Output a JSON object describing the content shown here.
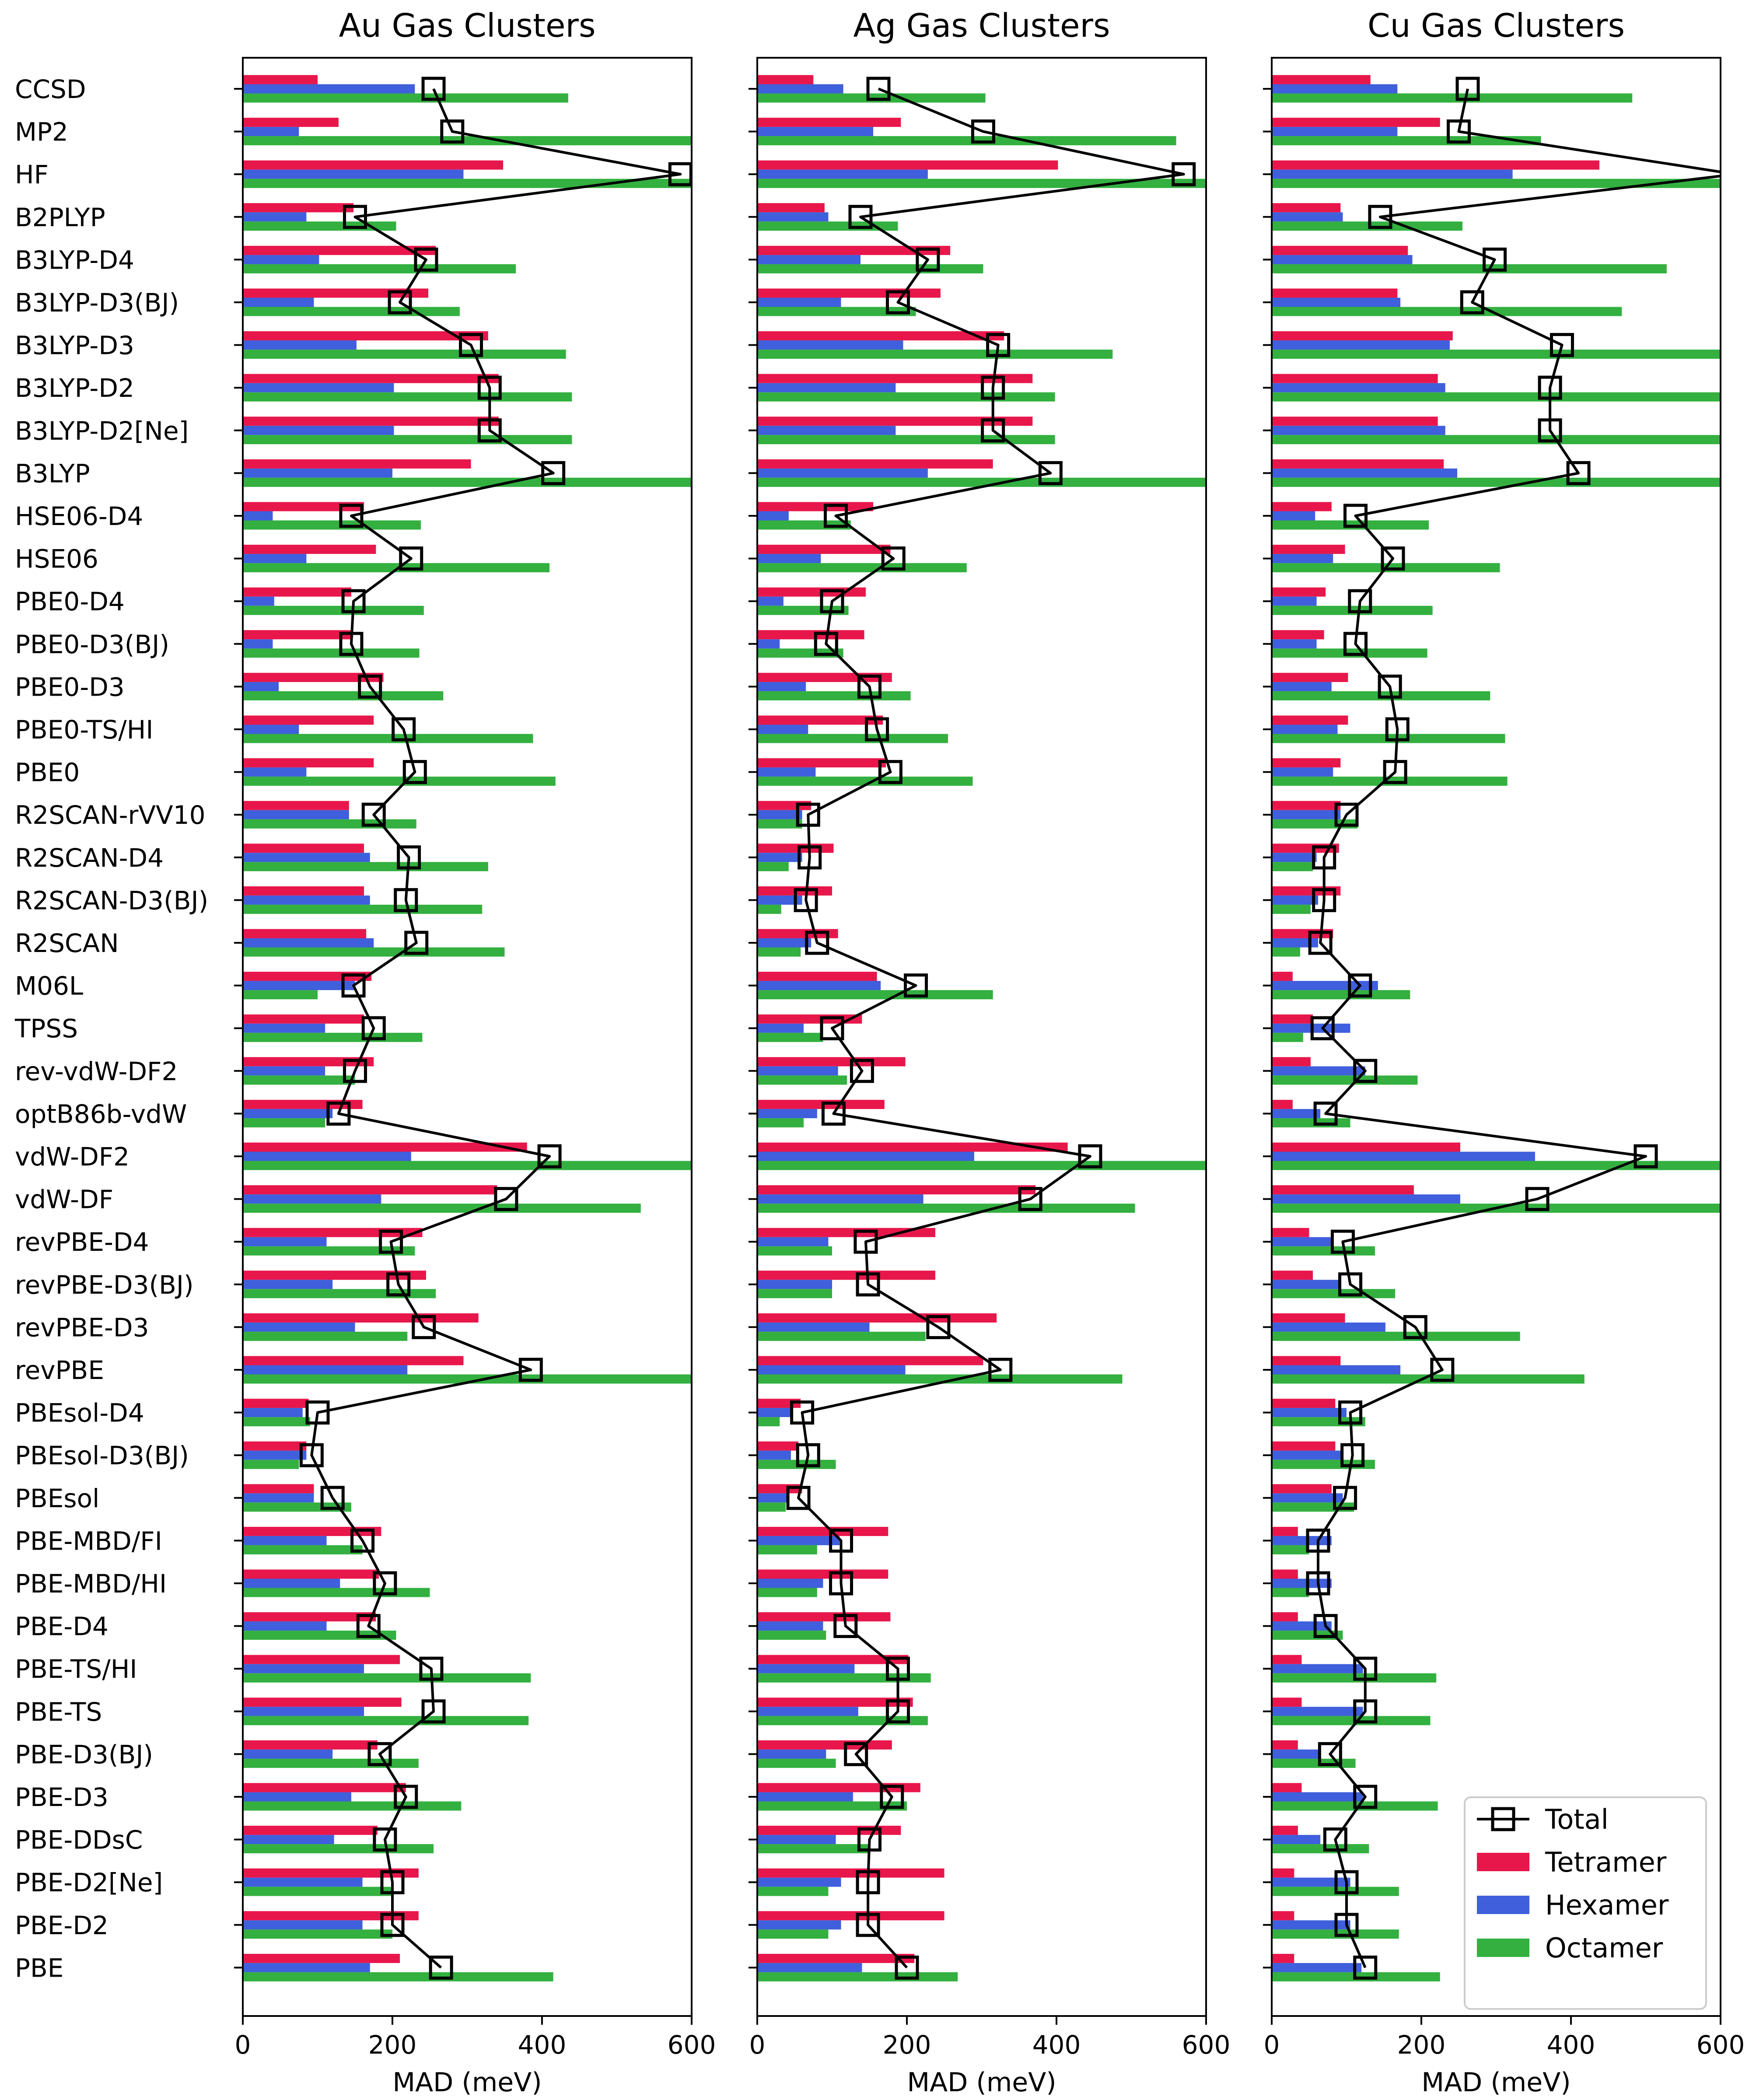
{
  "chart_data": {
    "type": "bar",
    "orientation": "horizontal",
    "xlabel": "MAD (meV)",
    "xlim": [
      0,
      600
    ],
    "xticks": [
      0,
      200,
      400,
      600
    ],
    "categories": [
      "CCSD",
      "MP2",
      "HF",
      "B2PLYP",
      "B3LYP-D4",
      "B3LYP-D3(BJ)",
      "B3LYP-D3",
      "B3LYP-D2",
      "B3LYP-D2[Ne]",
      "B3LYP",
      "HSE06-D4",
      "HSE06",
      "PBE0-D4",
      "PBE0-D3(BJ)",
      "PBE0-D3",
      "PBE0-TS/HI",
      "PBE0",
      "R2SCAN-rVV10",
      "R2SCAN-D4",
      "R2SCAN-D3(BJ)",
      "R2SCAN",
      "M06L",
      "TPSS",
      "rev-vdW-DF2",
      "optB86b-vdW",
      "vdW-DF2",
      "vdW-DF",
      "revPBE-D4",
      "revPBE-D3(BJ)",
      "revPBE-D3",
      "revPBE",
      "PBEsol-D4",
      "PBEsol-D3(BJ)",
      "PBEsol",
      "PBE-MBD/FI",
      "PBE-MBD/HI",
      "PBE-D4",
      "PBE-TS/HI",
      "PBE-TS",
      "PBE-D3(BJ)",
      "PBE-D3",
      "PBE-DDsC",
      "PBE-D2[Ne]",
      "PBE-D2",
      "PBE"
    ],
    "legend": {
      "position": "lower-right",
      "entries": [
        {
          "label": "Total",
          "color": "#000000",
          "marker": "square"
        },
        {
          "label": "Tetramer",
          "color": "#e8174b"
        },
        {
          "label": "Hexamer",
          "color": "#3f5fdc"
        },
        {
          "label": "Octamer",
          "color": "#33b040"
        }
      ]
    },
    "panels": [
      {
        "title": "Au Gas Clusters",
        "tetramer": [
          100,
          128,
          348,
          148,
          258,
          248,
          328,
          342,
          342,
          305,
          162,
          178,
          145,
          145,
          188,
          175,
          175,
          142,
          162,
          162,
          165,
          172,
          162,
          175,
          160,
          380,
          340,
          240,
          245,
          315,
          295,
          88,
          85,
          95,
          185,
          182,
          178,
          210,
          212,
          180,
          218,
          180,
          235,
          235,
          210
        ],
        "hexamer": [
          230,
          75,
          295,
          85,
          102,
          95,
          152,
          202,
          202,
          200,
          40,
          85,
          42,
          40,
          48,
          75,
          85,
          142,
          170,
          170,
          175,
          150,
          110,
          110,
          120,
          225,
          185,
          112,
          120,
          150,
          220,
          80,
          85,
          95,
          112,
          130,
          112,
          162,
          162,
          120,
          145,
          122,
          160,
          160,
          170
        ],
        "octamer": [
          435,
          600,
          600,
          205,
          365,
          290,
          432,
          440,
          440,
          600,
          238,
          410,
          242,
          236,
          268,
          388,
          418,
          232,
          328,
          320,
          350,
          100,
          240,
          150,
          110,
          600,
          532,
          230,
          258,
          220,
          600,
          90,
          75,
          145,
          160,
          250,
          205,
          385,
          382,
          235,
          292,
          255,
          200,
          200,
          415
        ],
        "total": [
          255,
          280,
          585,
          150,
          245,
          210,
          305,
          330,
          330,
          415,
          145,
          225,
          148,
          145,
          170,
          215,
          230,
          175,
          222,
          218,
          232,
          148,
          175,
          150,
          128,
          410,
          352,
          198,
          208,
          242,
          385,
          100,
          92,
          120,
          160,
          190,
          168,
          252,
          255,
          183,
          218,
          190,
          200,
          200,
          265
        ]
      },
      {
        "title": "Ag Gas Clusters",
        "tetramer": [
          75,
          192,
          402,
          90,
          258,
          245,
          330,
          368,
          368,
          315,
          155,
          178,
          145,
          143,
          180,
          168,
          172,
          72,
          102,
          100,
          108,
          160,
          140,
          198,
          170,
          415,
          372,
          238,
          238,
          320,
          302,
          58,
          55,
          60,
          175,
          175,
          178,
          202,
          208,
          180,
          218,
          192,
          250,
          250,
          210
        ],
        "hexamer": [
          115,
          155,
          228,
          95,
          138,
          112,
          195,
          185,
          185,
          228,
          42,
          85,
          35,
          30,
          65,
          68,
          78,
          60,
          60,
          60,
          72,
          165,
          62,
          108,
          80,
          290,
          222,
          95,
          100,
          150,
          198,
          45,
          45,
          42,
          110,
          88,
          88,
          130,
          135,
          92,
          128,
          105,
          112,
          112,
          140
        ],
        "octamer": [
          305,
          560,
          600,
          188,
          302,
          212,
          475,
          398,
          398,
          600,
          125,
          280,
          122,
          115,
          205,
          255,
          288,
          60,
          42,
          32,
          58,
          315,
          88,
          120,
          62,
          600,
          505,
          100,
          100,
          225,
          488,
          30,
          105,
          38,
          80,
          80,
          92,
          232,
          228,
          105,
          200,
          150,
          95,
          95,
          268
        ],
        "total": [
          162,
          302,
          570,
          138,
          228,
          188,
          322,
          315,
          315,
          392,
          105,
          182,
          100,
          92,
          150,
          160,
          178,
          68,
          70,
          65,
          80,
          212,
          100,
          140,
          102,
          445,
          365,
          145,
          148,
          242,
          325,
          60,
          68,
          55,
          112,
          112,
          118,
          188,
          188,
          132,
          180,
          150,
          148,
          148,
          200
        ]
      },
      {
        "title": "Cu Gas Clusters",
        "tetramer": [
          132,
          225,
          438,
          92,
          182,
          168,
          242,
          222,
          222,
          230,
          80,
          98,
          72,
          70,
          102,
          102,
          92,
          92,
          90,
          92,
          82,
          28,
          55,
          52,
          28,
          252,
          190,
          50,
          55,
          98,
          92,
          85,
          85,
          80,
          35,
          35,
          35,
          40,
          40,
          35,
          40,
          35,
          30,
          30,
          30
        ],
        "hexamer": [
          168,
          168,
          322,
          95,
          188,
          172,
          238,
          232,
          232,
          248,
          58,
          82,
          60,
          60,
          80,
          88,
          82,
          92,
          60,
          62,
          62,
          142,
          105,
          125,
          65,
          352,
          252,
          82,
          90,
          152,
          172,
          100,
          95,
          95,
          80,
          80,
          80,
          122,
          122,
          62,
          122,
          65,
          105,
          105,
          120
        ],
        "octamer": [
          482,
          360,
          600,
          255,
          528,
          468,
          600,
          600,
          600,
          600,
          210,
          305,
          215,
          208,
          292,
          312,
          315,
          115,
          55,
          52,
          38,
          185,
          42,
          195,
          105,
          600,
          600,
          138,
          165,
          332,
          418,
          125,
          138,
          110,
          50,
          50,
          95,
          220,
          212,
          112,
          222,
          130,
          170,
          170,
          225
        ],
        "total": [
          262,
          250,
          620,
          145,
          298,
          268,
          388,
          372,
          372,
          410,
          112,
          162,
          118,
          112,
          158,
          168,
          165,
          100,
          70,
          70,
          65,
          118,
          68,
          125,
          72,
          500,
          355,
          95,
          105,
          192,
          228,
          105,
          108,
          98,
          62,
          62,
          72,
          125,
          125,
          78,
          125,
          85,
          100,
          100,
          125
        ]
      }
    ]
  }
}
